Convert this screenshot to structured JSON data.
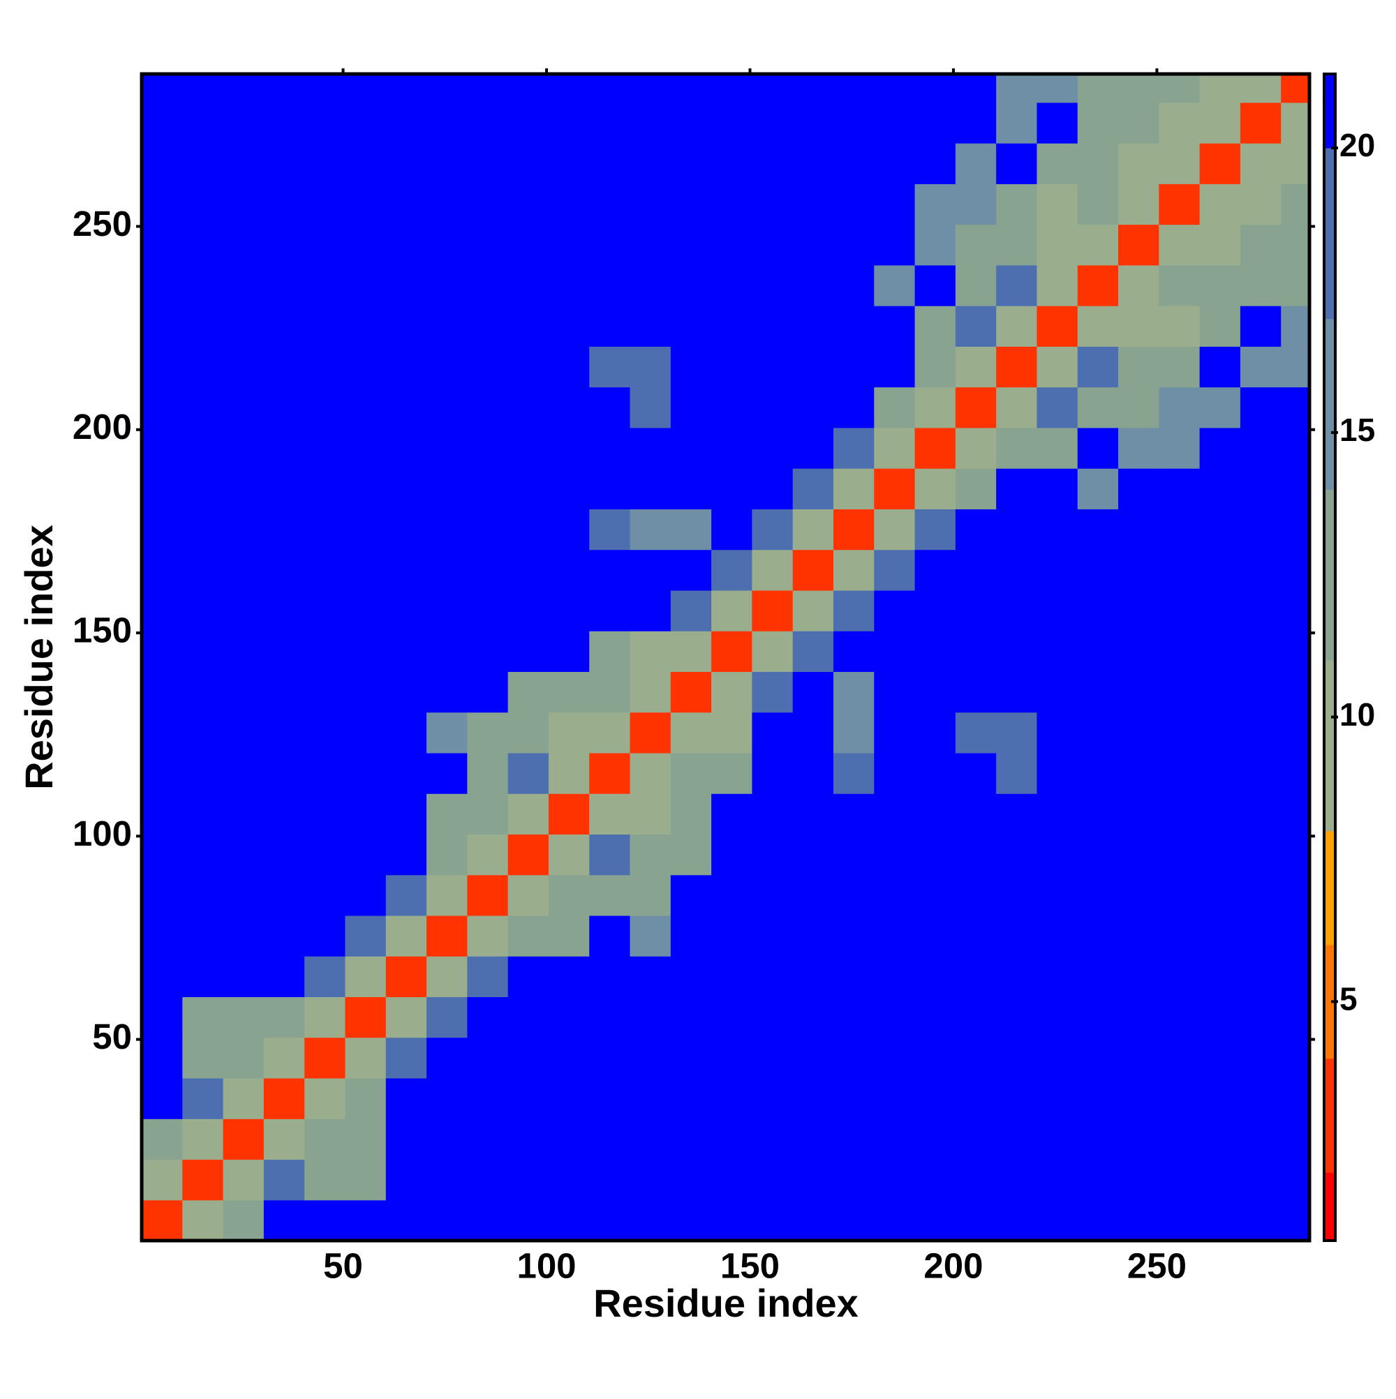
{
  "chart_data": {
    "type": "heatmap",
    "xlabel": "Residue index",
    "ylabel": "Residue index",
    "xlim": [
      0.5,
      287.5
    ],
    "ylim": [
      0.5,
      287.5
    ],
    "xticks": [
      50,
      100,
      150,
      200,
      250
    ],
    "yticks": [
      50,
      100,
      150,
      200,
      250
    ],
    "x_bins": [
      0.5,
      10.5,
      20.5,
      30.5,
      40.5,
      50.5,
      60.5,
      70.5,
      80.5,
      90.5,
      100.5,
      110.5,
      120.5,
      130.5,
      140.5,
      150.5,
      160.5,
      170.5,
      180.5,
      190.5,
      200.5,
      210.5,
      220.5,
      230.5,
      240.5,
      250.5,
      260.5,
      270.5,
      280.5,
      287.5
    ],
    "y_bins": [
      0.5,
      10.5,
      20.5,
      30.5,
      40.5,
      50.5,
      60.5,
      70.5,
      80.5,
      90.5,
      100.5,
      110.5,
      120.5,
      130.5,
      140.5,
      150.5,
      160.5,
      170.5,
      180.5,
      190.5,
      200.5,
      210.5,
      220.5,
      230.5,
      240.5,
      250.5,
      260.5,
      270.5,
      280.5,
      287.5
    ],
    "clim": [
      0.8,
      21.3
    ],
    "cticks": [
      5,
      10,
      15,
      20
    ],
    "colorscale": [
      {
        "value": 2,
        "color": "#ff0000"
      },
      {
        "value": 4,
        "color": "#ff3300"
      },
      {
        "value": 6,
        "color": "#ff7700"
      },
      {
        "value": 8,
        "color": "#ffa200"
      },
      {
        "value": 11,
        "color": "#9aae8e"
      },
      {
        "value": 14,
        "color": "#88a490"
      },
      {
        "value": 17,
        "color": "#6f8fa6"
      },
      {
        "value": 20,
        "color": "#4d6fb0"
      },
      {
        "value": 21.3,
        "color": "#0000ff"
      }
    ],
    "values": [
      [
        3,
        9,
        13,
        21,
        21,
        21,
        21,
        21,
        21,
        21,
        21,
        21,
        21,
        21,
        21,
        21,
        21,
        21,
        21,
        21,
        21,
        21,
        21,
        21,
        21,
        21,
        21,
        21,
        21
      ],
      [
        9,
        3,
        9,
        18,
        14,
        14,
        21,
        21,
        21,
        21,
        21,
        21,
        21,
        21,
        21,
        21,
        21,
        21,
        21,
        21,
        21,
        21,
        21,
        21,
        21,
        21,
        21,
        21,
        21
      ],
      [
        13,
        9,
        3,
        9,
        14,
        14,
        21,
        21,
        21,
        21,
        21,
        21,
        21,
        21,
        21,
        21,
        21,
        21,
        21,
        21,
        21,
        21,
        21,
        21,
        21,
        21,
        21,
        21,
        21
      ],
      [
        21,
        18,
        9,
        3,
        9,
        13,
        21,
        21,
        21,
        21,
        21,
        21,
        21,
        21,
        21,
        21,
        21,
        21,
        21,
        21,
        21,
        21,
        21,
        21,
        21,
        21,
        21,
        21,
        21
      ],
      [
        21,
        14,
        14,
        9,
        3,
        9,
        18,
        21,
        21,
        21,
        21,
        21,
        21,
        21,
        21,
        21,
        21,
        21,
        21,
        21,
        21,
        21,
        21,
        21,
        21,
        21,
        21,
        21,
        21
      ],
      [
        21,
        14,
        14,
        13,
        9,
        3,
        9,
        18,
        21,
        21,
        21,
        21,
        21,
        21,
        21,
        21,
        21,
        21,
        21,
        21,
        21,
        21,
        21,
        21,
        21,
        21,
        21,
        21,
        21
      ],
      [
        21,
        21,
        21,
        21,
        18,
        9,
        3,
        9,
        18,
        21,
        21,
        21,
        21,
        21,
        21,
        21,
        21,
        21,
        21,
        21,
        21,
        21,
        21,
        21,
        21,
        21,
        21,
        21,
        21
      ],
      [
        21,
        21,
        21,
        21,
        21,
        18,
        9,
        3,
        9,
        14,
        14,
        21,
        15,
        21,
        21,
        21,
        21,
        21,
        21,
        21,
        21,
        21,
        21,
        21,
        21,
        21,
        21,
        21,
        21
      ],
      [
        21,
        21,
        21,
        21,
        21,
        21,
        18,
        9,
        3,
        9,
        13,
        12,
        14,
        21,
        21,
        21,
        21,
        21,
        21,
        21,
        21,
        21,
        21,
        21,
        21,
        21,
        21,
        21,
        21
      ],
      [
        21,
        21,
        21,
        21,
        21,
        21,
        21,
        14,
        9,
        3,
        9,
        18,
        12,
        14,
        21,
        21,
        21,
        21,
        21,
        21,
        21,
        21,
        21,
        21,
        21,
        21,
        21,
        21,
        21
      ],
      [
        21,
        21,
        21,
        21,
        21,
        21,
        21,
        14,
        13,
        9,
        3,
        9,
        9,
        13,
        21,
        21,
        21,
        21,
        21,
        21,
        21,
        21,
        21,
        21,
        21,
        21,
        21,
        21,
        21
      ],
      [
        21,
        21,
        21,
        21,
        21,
        21,
        21,
        21,
        12,
        18,
        9,
        3,
        9,
        12,
        14,
        21,
        21,
        18,
        21,
        21,
        21,
        18,
        21,
        21,
        21,
        21,
        21,
        21,
        21
      ],
      [
        21,
        21,
        21,
        21,
        21,
        21,
        21,
        15,
        14,
        12,
        9,
        9,
        3,
        9,
        11,
        21,
        21,
        17,
        21,
        21,
        18,
        18,
        21,
        21,
        21,
        21,
        21,
        21,
        21
      ],
      [
        21,
        21,
        21,
        21,
        21,
        21,
        21,
        21,
        21,
        14,
        13,
        12,
        9,
        3,
        9,
        18,
        21,
        17,
        21,
        21,
        21,
        21,
        21,
        21,
        21,
        21,
        21,
        21,
        21
      ],
      [
        21,
        21,
        21,
        21,
        21,
        21,
        21,
        21,
        21,
        21,
        21,
        14,
        11,
        9,
        3,
        9,
        18,
        21,
        21,
        21,
        21,
        21,
        21,
        21,
        21,
        21,
        21,
        21,
        21
      ],
      [
        21,
        21,
        21,
        21,
        21,
        21,
        21,
        21,
        21,
        21,
        21,
        21,
        21,
        18,
        9,
        3,
        9,
        18,
        21,
        21,
        21,
        21,
        21,
        21,
        21,
        21,
        21,
        21,
        21
      ],
      [
        21,
        21,
        21,
        21,
        21,
        21,
        21,
        21,
        21,
        21,
        21,
        21,
        21,
        21,
        18,
        9,
        3,
        9,
        18,
        21,
        21,
        21,
        21,
        21,
        21,
        21,
        21,
        21,
        21
      ],
      [
        21,
        21,
        21,
        21,
        21,
        21,
        21,
        21,
        21,
        21,
        21,
        18,
        17,
        17,
        21,
        18,
        9,
        3,
        9,
        18,
        21,
        21,
        21,
        21,
        21,
        21,
        21,
        21,
        21
      ],
      [
        21,
        21,
        21,
        21,
        21,
        21,
        21,
        21,
        21,
        21,
        21,
        21,
        21,
        21,
        21,
        21,
        18,
        9,
        3,
        9,
        13,
        21,
        21,
        17,
        21,
        21,
        21,
        21,
        21
      ],
      [
        21,
        21,
        21,
        21,
        21,
        21,
        21,
        21,
        21,
        21,
        21,
        21,
        21,
        21,
        21,
        21,
        21,
        18,
        9,
        3,
        9,
        12,
        14,
        21,
        16,
        17,
        21,
        21,
        21
      ],
      [
        21,
        21,
        21,
        21,
        21,
        21,
        21,
        21,
        21,
        21,
        21,
        21,
        18,
        21,
        21,
        21,
        21,
        21,
        13,
        9,
        3,
        9,
        18,
        13,
        14,
        15,
        16,
        21,
        21
      ],
      [
        21,
        21,
        21,
        21,
        21,
        21,
        21,
        21,
        21,
        21,
        21,
        18,
        18,
        21,
        21,
        21,
        21,
        21,
        21,
        12,
        9,
        3,
        9,
        18,
        12,
        13,
        21,
        15,
        17
      ],
      [
        21,
        21,
        21,
        21,
        21,
        21,
        21,
        21,
        21,
        21,
        21,
        21,
        21,
        21,
        21,
        21,
        21,
        21,
        21,
        14,
        18,
        9,
        3,
        9,
        10,
        11,
        13,
        21,
        15
      ],
      [
        21,
        21,
        21,
        21,
        21,
        21,
        21,
        21,
        21,
        21,
        21,
        21,
        21,
        21,
        21,
        21,
        21,
        21,
        17,
        21,
        13,
        18,
        9,
        3,
        9,
        12,
        12,
        14,
        13
      ],
      [
        21,
        21,
        21,
        21,
        21,
        21,
        21,
        21,
        21,
        21,
        21,
        21,
        21,
        21,
        21,
        21,
        21,
        21,
        21,
        16,
        14,
        12,
        10,
        9,
        3,
        9,
        10,
        12,
        14
      ],
      [
        21,
        21,
        21,
        21,
        21,
        21,
        21,
        21,
        21,
        21,
        21,
        21,
        21,
        21,
        21,
        21,
        21,
        21,
        21,
        17,
        15,
        13,
        11,
        12,
        9,
        3,
        9,
        11,
        13
      ],
      [
        21,
        21,
        21,
        21,
        21,
        21,
        21,
        21,
        21,
        21,
        21,
        21,
        21,
        21,
        21,
        21,
        21,
        21,
        21,
        21,
        16,
        21,
        13,
        12,
        10,
        9,
        3,
        9,
        10
      ],
      [
        21,
        21,
        21,
        21,
        21,
        21,
        21,
        21,
        21,
        21,
        21,
        21,
        21,
        21,
        21,
        21,
        21,
        21,
        21,
        21,
        21,
        15,
        21,
        14,
        12,
        11,
        9,
        3,
        9
      ],
      [
        21,
        21,
        21,
        21,
        21,
        21,
        21,
        21,
        21,
        21,
        21,
        21,
        21,
        21,
        21,
        21,
        21,
        21,
        21,
        21,
        21,
        17,
        15,
        13,
        14,
        13,
        10,
        9,
        3
      ]
    ]
  }
}
